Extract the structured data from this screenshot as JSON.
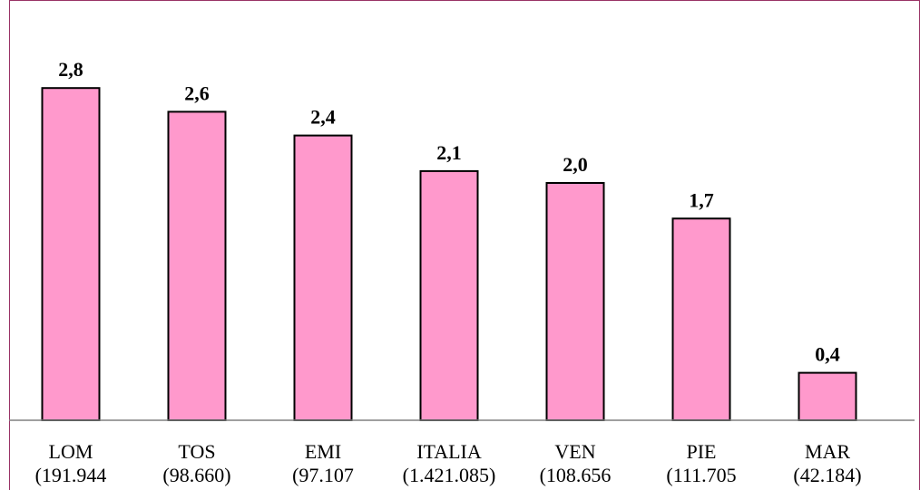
{
  "chart_data": {
    "type": "bar",
    "categories": [
      "LOM",
      "TOS",
      "EMI",
      "ITALIA",
      "VEN",
      "PIE",
      "MAR"
    ],
    "sublabels": [
      "(191.944",
      "(98.660)",
      "(97.107",
      "(1.421.085)",
      "(108.656",
      "(111.705",
      "(42.184)"
    ],
    "values": [
      2.8,
      2.6,
      2.4,
      2.1,
      2.0,
      1.7,
      0.4
    ],
    "value_labels": [
      "2,8",
      "2,6",
      "2,4",
      "2,1",
      "2,0",
      "1,7",
      "0,4"
    ],
    "ylim": [
      0,
      3.0
    ],
    "grid": false,
    "legend": "none"
  },
  "colors": {
    "bar_fill": "#ff99cc",
    "bar_stroke": "#000000",
    "frame": "#993366",
    "axis": "#808080"
  }
}
